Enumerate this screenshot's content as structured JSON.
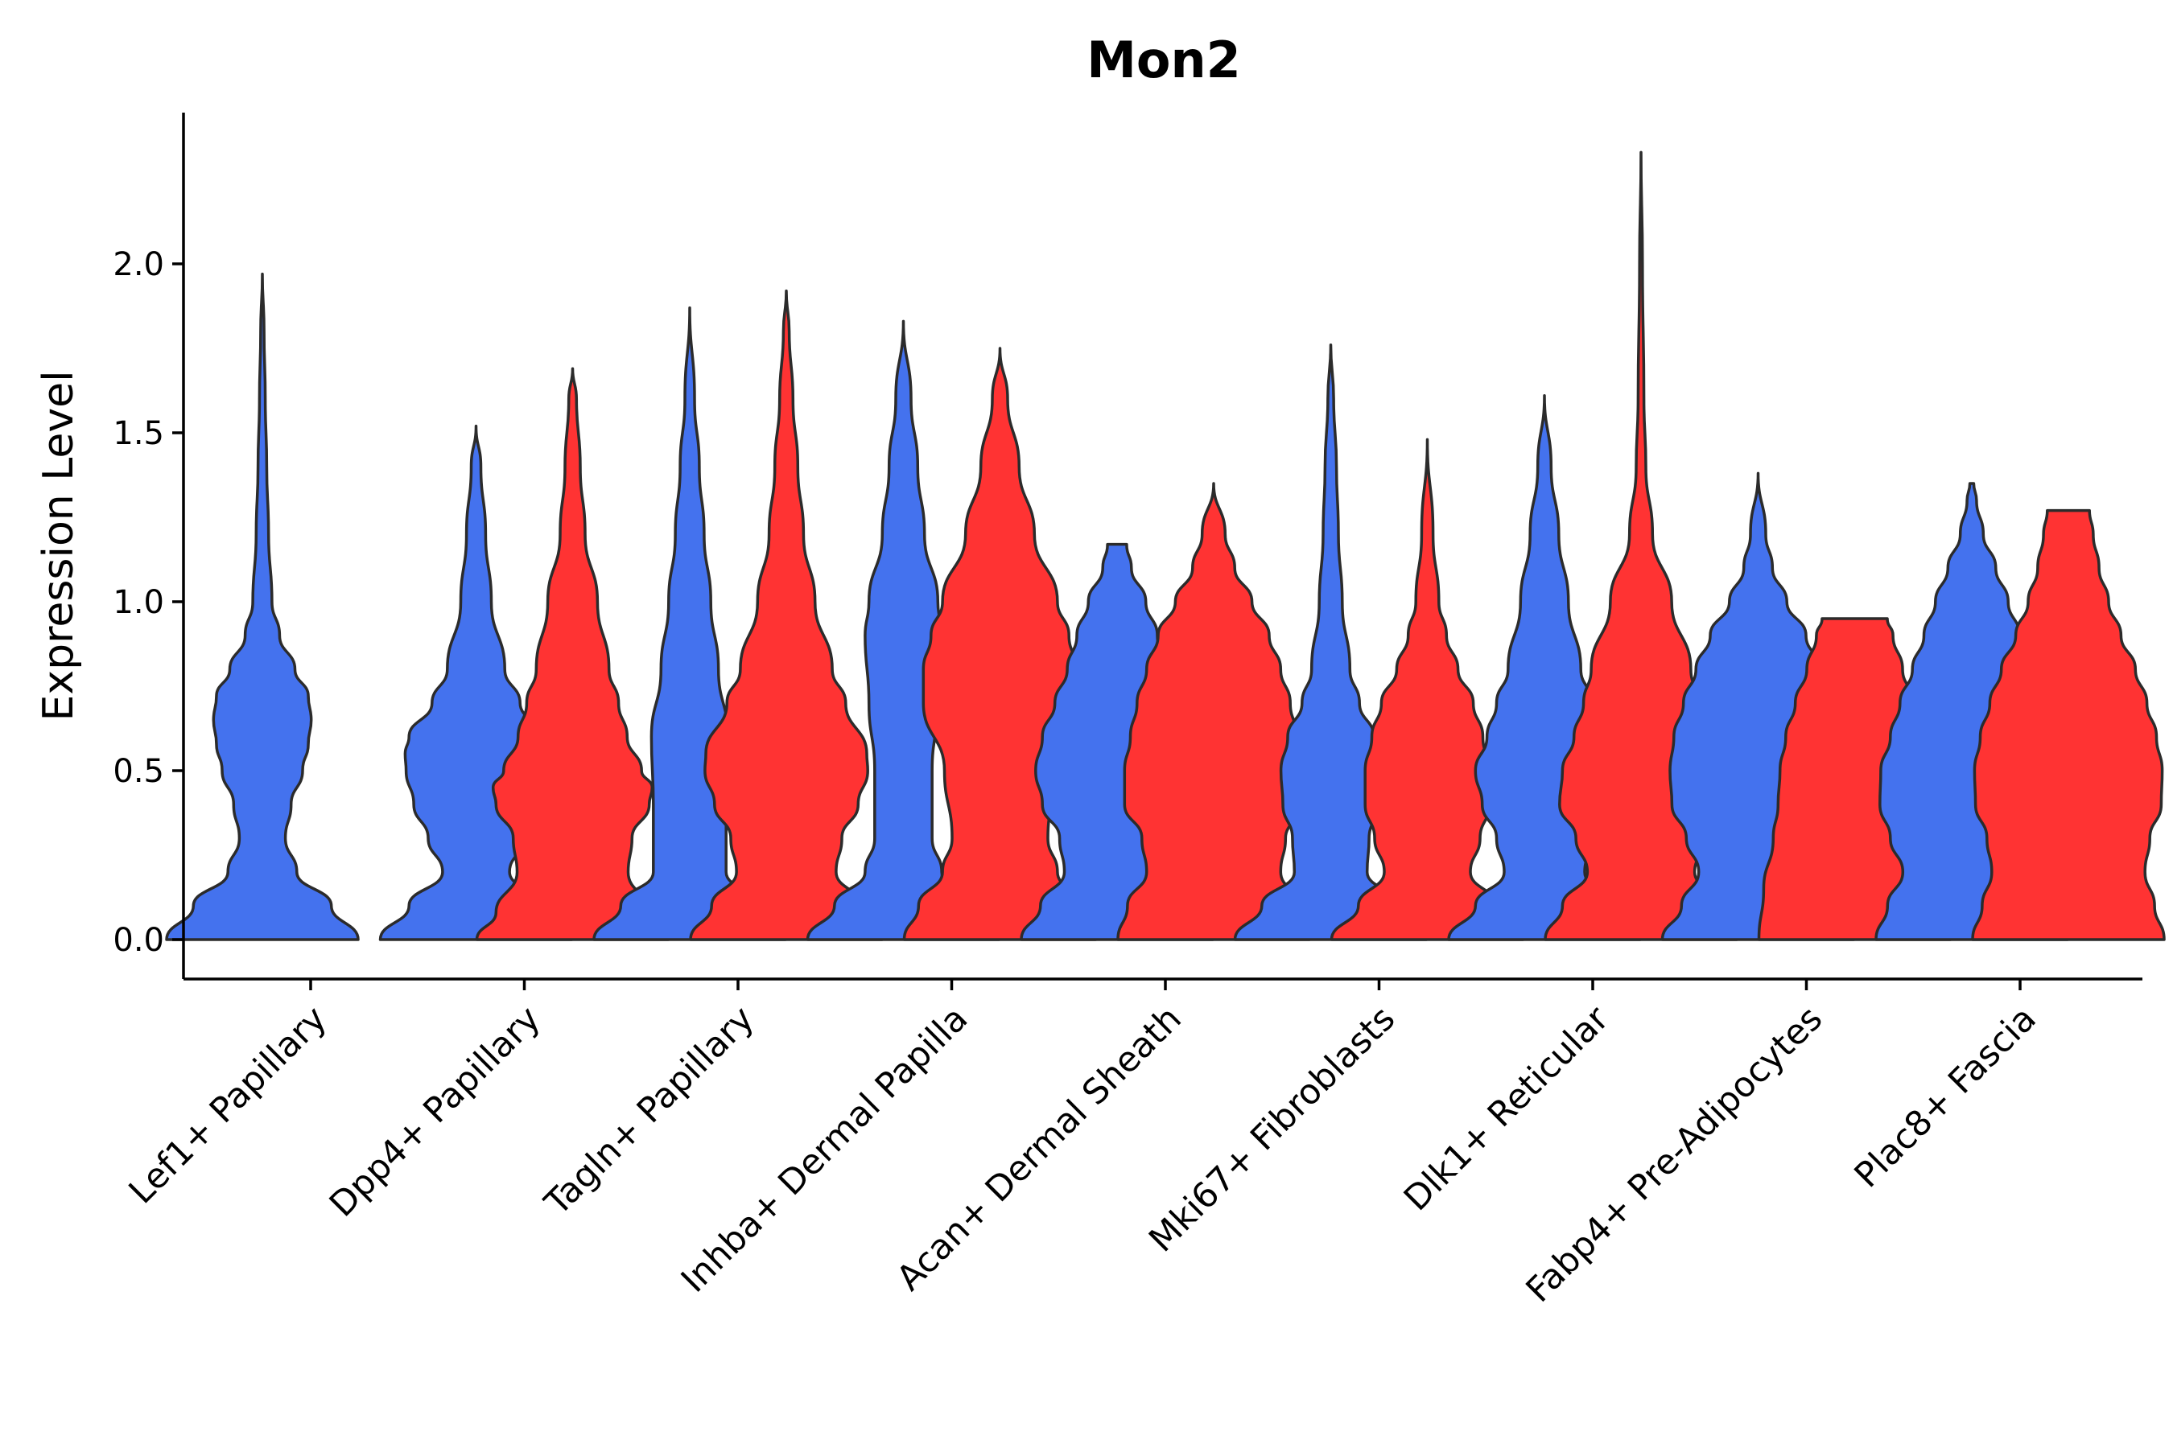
{
  "chart_data": {
    "type": "violin",
    "title": "Mon2",
    "xlabel": "",
    "ylabel": "Expression Level",
    "ylim": [
      -0.12,
      2.45
    ],
    "yticks": [
      0.0,
      0.5,
      1.0,
      1.5,
      2.0
    ],
    "ytick_labels": [
      "0.0",
      "0.5",
      "1.0",
      "1.5",
      "2.0"
    ],
    "grid": false,
    "legend": "none",
    "categories": [
      "Lef1+ Papillary",
      "Dpp4+ Papillary",
      "Tagln+ Papillary",
      "Inhba+ Dermal Papilla",
      "Acan+ Dermal Sheath",
      "Mki67+ Fibroblasts",
      "Dlk1+ Reticular",
      "Fabp4+ Pre-Adipocytes",
      "Plac8+ Fascia"
    ],
    "series_colors": {
      "group1": "#4472EE",
      "group2": "#FF3333"
    },
    "violins": [
      {
        "category": 0,
        "group": "group1",
        "max": 1.97,
        "profile": [
          [
            0,
            1.0
          ],
          [
            0.1,
            0.72
          ],
          [
            0.2,
            0.36
          ],
          [
            0.3,
            0.24
          ],
          [
            0.4,
            0.3
          ],
          [
            0.5,
            0.42
          ],
          [
            0.58,
            0.48
          ],
          [
            0.65,
            0.51
          ],
          [
            0.72,
            0.48
          ],
          [
            0.8,
            0.34
          ],
          [
            0.9,
            0.18
          ],
          [
            1.0,
            0.1
          ],
          [
            1.2,
            0.065
          ],
          [
            1.4,
            0.045
          ],
          [
            1.6,
            0.03
          ],
          [
            1.8,
            0.018
          ],
          [
            1.97,
            0.0
          ]
        ]
      },
      {
        "category": 1,
        "group": "group1",
        "max": 1.52,
        "profile": [
          [
            0,
            1.0
          ],
          [
            0.1,
            0.7
          ],
          [
            0.2,
            0.35
          ],
          [
            0.3,
            0.5
          ],
          [
            0.4,
            0.65
          ],
          [
            0.5,
            0.73
          ],
          [
            0.55,
            0.74
          ],
          [
            0.6,
            0.7
          ],
          [
            0.7,
            0.46
          ],
          [
            0.8,
            0.3
          ],
          [
            1.0,
            0.16
          ],
          [
            1.2,
            0.1
          ],
          [
            1.4,
            0.05
          ],
          [
            1.52,
            0.0
          ]
        ]
      },
      {
        "category": 1,
        "group": "group2",
        "max": 1.69,
        "profile": [
          [
            0,
            1.0
          ],
          [
            0.08,
            0.8
          ],
          [
            0.2,
            0.58
          ],
          [
            0.3,
            0.62
          ],
          [
            0.4,
            0.8
          ],
          [
            0.45,
            0.83
          ],
          [
            0.5,
            0.72
          ],
          [
            0.6,
            0.57
          ],
          [
            0.7,
            0.48
          ],
          [
            0.8,
            0.38
          ],
          [
            1.0,
            0.26
          ],
          [
            1.2,
            0.13
          ],
          [
            1.4,
            0.08
          ],
          [
            1.6,
            0.04
          ],
          [
            1.69,
            0.0
          ]
        ]
      },
      {
        "category": 2,
        "group": "group1",
        "max": 1.87,
        "profile": [
          [
            0,
            1.0
          ],
          [
            0.1,
            0.72
          ],
          [
            0.2,
            0.38
          ],
          [
            0.4,
            0.38
          ],
          [
            0.6,
            0.4
          ],
          [
            0.8,
            0.3
          ],
          [
            1.0,
            0.22
          ],
          [
            1.2,
            0.15
          ],
          [
            1.4,
            0.1
          ],
          [
            1.6,
            0.05
          ],
          [
            1.87,
            0.0
          ]
        ]
      },
      {
        "category": 2,
        "group": "group2",
        "max": 1.92,
        "profile": [
          [
            0,
            1.0
          ],
          [
            0.1,
            0.78
          ],
          [
            0.2,
            0.52
          ],
          [
            0.3,
            0.58
          ],
          [
            0.4,
            0.75
          ],
          [
            0.5,
            0.85
          ],
          [
            0.55,
            0.84
          ],
          [
            0.7,
            0.62
          ],
          [
            0.8,
            0.48
          ],
          [
            1.0,
            0.3
          ],
          [
            1.2,
            0.18
          ],
          [
            1.4,
            0.12
          ],
          [
            1.6,
            0.07
          ],
          [
            1.8,
            0.03
          ],
          [
            1.92,
            0.0
          ]
        ]
      },
      {
        "category": 3,
        "group": "group1",
        "max": 1.83,
        "profile": [
          [
            0,
            1.0
          ],
          [
            0.1,
            0.72
          ],
          [
            0.2,
            0.4
          ],
          [
            0.3,
            0.3
          ],
          [
            0.5,
            0.3
          ],
          [
            0.7,
            0.36
          ],
          [
            0.9,
            0.4
          ],
          [
            1.0,
            0.36
          ],
          [
            1.2,
            0.22
          ],
          [
            1.4,
            0.15
          ],
          [
            1.6,
            0.08
          ],
          [
            1.83,
            0.0
          ]
        ]
      },
      {
        "category": 3,
        "group": "group2",
        "max": 1.75,
        "profile": [
          [
            0,
            1.0
          ],
          [
            0.1,
            0.85
          ],
          [
            0.2,
            0.6
          ],
          [
            0.3,
            0.5
          ],
          [
            0.5,
            0.58
          ],
          [
            0.7,
            0.8
          ],
          [
            0.8,
            0.8
          ],
          [
            0.9,
            0.72
          ],
          [
            1.0,
            0.6
          ],
          [
            1.2,
            0.36
          ],
          [
            1.4,
            0.2
          ],
          [
            1.6,
            0.08
          ],
          [
            1.75,
            0.0
          ]
        ]
      },
      {
        "category": 4,
        "group": "group1",
        "max": 1.17,
        "profile": [
          [
            0,
            1.0
          ],
          [
            0.1,
            0.8
          ],
          [
            0.2,
            0.55
          ],
          [
            0.3,
            0.6
          ],
          [
            0.4,
            0.78
          ],
          [
            0.5,
            0.85
          ],
          [
            0.6,
            0.78
          ],
          [
            0.7,
            0.65
          ],
          [
            0.8,
            0.52
          ],
          [
            0.9,
            0.42
          ],
          [
            1.0,
            0.3
          ],
          [
            1.1,
            0.15
          ],
          [
            1.17,
            0.1
          ]
        ]
      },
      {
        "category": 4,
        "group": "group2",
        "max": 1.35,
        "profile": [
          [
            0,
            1.0
          ],
          [
            0.1,
            0.9
          ],
          [
            0.2,
            0.7
          ],
          [
            0.3,
            0.75
          ],
          [
            0.4,
            0.93
          ],
          [
            0.5,
            0.93
          ],
          [
            0.6,
            0.87
          ],
          [
            0.7,
            0.8
          ],
          [
            0.8,
            0.7
          ],
          [
            0.9,
            0.58
          ],
          [
            1.0,
            0.4
          ],
          [
            1.1,
            0.22
          ],
          [
            1.2,
            0.12
          ],
          [
            1.35,
            0.0
          ]
        ]
      },
      {
        "category": 5,
        "group": "group1",
        "max": 1.76,
        "profile": [
          [
            0,
            1.0
          ],
          [
            0.1,
            0.72
          ],
          [
            0.2,
            0.38
          ],
          [
            0.3,
            0.4
          ],
          [
            0.4,
            0.5
          ],
          [
            0.5,
            0.52
          ],
          [
            0.6,
            0.45
          ],
          [
            0.7,
            0.3
          ],
          [
            0.8,
            0.2
          ],
          [
            1.0,
            0.12
          ],
          [
            1.2,
            0.08
          ],
          [
            1.4,
            0.06
          ],
          [
            1.6,
            0.03
          ],
          [
            1.76,
            0.0
          ]
        ]
      },
      {
        "category": 5,
        "group": "group2",
        "max": 1.48,
        "profile": [
          [
            0,
            1.0
          ],
          [
            0.1,
            0.72
          ],
          [
            0.2,
            0.45
          ],
          [
            0.3,
            0.55
          ],
          [
            0.4,
            0.65
          ],
          [
            0.5,
            0.65
          ],
          [
            0.6,
            0.58
          ],
          [
            0.7,
            0.48
          ],
          [
            0.8,
            0.32
          ],
          [
            0.9,
            0.2
          ],
          [
            1.0,
            0.12
          ],
          [
            1.2,
            0.06
          ],
          [
            1.48,
            0.0
          ]
        ]
      },
      {
        "category": 6,
        "group": "group1",
        "max": 1.61,
        "profile": [
          [
            0,
            1.0
          ],
          [
            0.1,
            0.72
          ],
          [
            0.2,
            0.42
          ],
          [
            0.3,
            0.5
          ],
          [
            0.4,
            0.65
          ],
          [
            0.5,
            0.72
          ],
          [
            0.6,
            0.6
          ],
          [
            0.7,
            0.5
          ],
          [
            0.8,
            0.38
          ],
          [
            1.0,
            0.25
          ],
          [
            1.2,
            0.15
          ],
          [
            1.4,
            0.07
          ],
          [
            1.61,
            0.0
          ]
        ]
      },
      {
        "category": 6,
        "group": "group2",
        "max": 2.33,
        "profile": [
          [
            0,
            1.0
          ],
          [
            0.1,
            0.82
          ],
          [
            0.2,
            0.56
          ],
          [
            0.3,
            0.68
          ],
          [
            0.4,
            0.85
          ],
          [
            0.5,
            0.82
          ],
          [
            0.6,
            0.7
          ],
          [
            0.7,
            0.6
          ],
          [
            0.8,
            0.52
          ],
          [
            1.0,
            0.32
          ],
          [
            1.2,
            0.12
          ],
          [
            1.4,
            0.05
          ],
          [
            1.6,
            0.03
          ],
          [
            2.0,
            0.015
          ],
          [
            2.33,
            0.0
          ]
        ]
      },
      {
        "category": 7,
        "group": "group1",
        "max": 1.38,
        "profile": [
          [
            0,
            1.0
          ],
          [
            0.1,
            0.8
          ],
          [
            0.2,
            0.62
          ],
          [
            0.3,
            0.75
          ],
          [
            0.4,
            0.9
          ],
          [
            0.5,
            0.92
          ],
          [
            0.6,
            0.88
          ],
          [
            0.7,
            0.78
          ],
          [
            0.8,
            0.65
          ],
          [
            0.9,
            0.5
          ],
          [
            1.0,
            0.3
          ],
          [
            1.1,
            0.15
          ],
          [
            1.2,
            0.08
          ],
          [
            1.38,
            0.0
          ]
        ]
      },
      {
        "category": 7,
        "group": "group2",
        "max": 0.95,
        "profile": [
          [
            0,
            1.0
          ],
          [
            0.15,
            0.95
          ],
          [
            0.3,
            0.85
          ],
          [
            0.4,
            0.8
          ],
          [
            0.5,
            0.78
          ],
          [
            0.6,
            0.72
          ],
          [
            0.7,
            0.62
          ],
          [
            0.8,
            0.5
          ],
          [
            0.9,
            0.4
          ],
          [
            0.95,
            0.34
          ]
        ]
      },
      {
        "category": 8,
        "group": "group1",
        "max": 1.35,
        "profile": [
          [
            0,
            1.0
          ],
          [
            0.1,
            0.88
          ],
          [
            0.2,
            0.72
          ],
          [
            0.3,
            0.85
          ],
          [
            0.4,
            0.96
          ],
          [
            0.5,
            0.95
          ],
          [
            0.6,
            0.85
          ],
          [
            0.7,
            0.75
          ],
          [
            0.8,
            0.62
          ],
          [
            0.9,
            0.5
          ],
          [
            1.0,
            0.38
          ],
          [
            1.1,
            0.25
          ],
          [
            1.2,
            0.12
          ],
          [
            1.3,
            0.05
          ],
          [
            1.35,
            0.02
          ]
        ]
      },
      {
        "category": 8,
        "group": "group2",
        "max": 1.27,
        "profile": [
          [
            0,
            1.0
          ],
          [
            0.1,
            0.9
          ],
          [
            0.2,
            0.8
          ],
          [
            0.3,
            0.85
          ],
          [
            0.4,
            0.97
          ],
          [
            0.5,
            0.98
          ],
          [
            0.6,
            0.92
          ],
          [
            0.7,
            0.82
          ],
          [
            0.8,
            0.7
          ],
          [
            0.9,
            0.55
          ],
          [
            1.0,
            0.42
          ],
          [
            1.1,
            0.32
          ],
          [
            1.2,
            0.26
          ],
          [
            1.27,
            0.22
          ]
        ]
      }
    ]
  }
}
